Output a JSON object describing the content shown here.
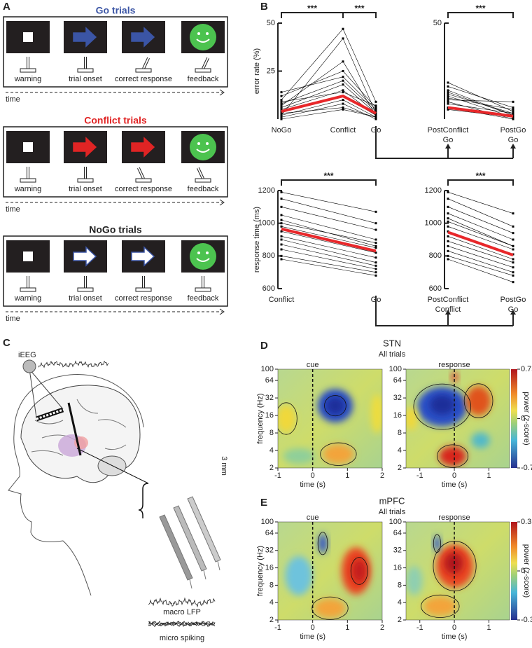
{
  "panel_labels": [
    "A",
    "B",
    "C",
    "D",
    "E"
  ],
  "panel_a": {
    "trials": [
      {
        "title": "Go trials",
        "color": "#3b55a5"
      },
      {
        "title": "Conflict trials",
        "color": "#e02424"
      },
      {
        "title": "NoGo trials",
        "color": "#222222"
      }
    ],
    "steps": [
      "warning",
      "trial onset",
      "correct response",
      "feedback"
    ],
    "time_label": "time"
  },
  "chart_data": [
    {
      "type": "line",
      "y_label": "error rate (%)",
      "categories": [
        "NoGo",
        "Conflict",
        "Go"
      ],
      "values": [
        4,
        12,
        3
      ],
      "color": "#e8272a",
      "subject_values": [
        [
          2,
          10,
          1
        ],
        [
          5,
          15,
          2
        ],
        [
          8,
          20,
          4
        ],
        [
          3,
          6,
          1
        ],
        [
          12,
          25,
          6
        ],
        [
          1,
          8,
          0
        ],
        [
          6,
          18,
          3
        ],
        [
          10,
          47,
          9
        ],
        [
          4,
          12,
          2
        ],
        [
          14,
          22,
          5
        ],
        [
          2,
          42,
          3
        ],
        [
          7,
          30,
          2
        ],
        [
          0,
          5,
          1
        ],
        [
          9,
          14,
          7
        ]
      ],
      "subject_color": "#000000",
      "ylim": [
        0,
        50
      ],
      "yticks": [
        25,
        50
      ],
      "annotations": [
        "***",
        "***"
      ]
    },
    {
      "type": "line",
      "categories": [
        "PostConflict\nGo",
        "PostGo\nGo"
      ],
      "values": [
        6,
        1.5
      ],
      "color": "#e8272a",
      "subject_values": [
        [
          19,
          4
        ],
        [
          15,
          2
        ],
        [
          12,
          1
        ],
        [
          10,
          9
        ],
        [
          8,
          3
        ],
        [
          17,
          6
        ],
        [
          6,
          0
        ],
        [
          14,
          2
        ],
        [
          11,
          5
        ],
        [
          5,
          1
        ],
        [
          9,
          0
        ],
        [
          13,
          3
        ]
      ],
      "subject_color": "#000000",
      "ylim": [
        0,
        50
      ],
      "yticks": [
        50
      ],
      "annotations": [
        "***"
      ]
    },
    {
      "type": "line",
      "y_label": "response time (ms)",
      "categories": [
        "Conflict",
        "Go"
      ],
      "values": [
        965,
        830
      ],
      "color": "#e8272a",
      "subject_values": [
        [
          1190,
          1070
        ],
        [
          1150,
          1000
        ],
        [
          1100,
          960
        ],
        [
          1050,
          900
        ],
        [
          1000,
          880
        ],
        [
          980,
          850
        ],
        [
          950,
          820
        ],
        [
          920,
          790
        ],
        [
          900,
          760
        ],
        [
          870,
          740
        ],
        [
          840,
          720
        ],
        [
          800,
          700
        ],
        [
          780,
          680
        ],
        [
          1020,
          860
        ]
      ],
      "subject_color": "#000000",
      "ylim": [
        600,
        1200
      ],
      "yticks": [
        600,
        800,
        1000,
        1200
      ],
      "annotations": [
        "***"
      ]
    },
    {
      "type": "line",
      "categories": [
        "PostConflict\nConflict",
        "PostGo\nGo"
      ],
      "values": [
        945,
        805
      ],
      "color": "#e8272a",
      "subject_values": [
        [
          1190,
          1060
        ],
        [
          1150,
          980
        ],
        [
          1100,
          940
        ],
        [
          1060,
          900
        ],
        [
          1010,
          860
        ],
        [
          980,
          840
        ],
        [
          950,
          810
        ],
        [
          920,
          780
        ],
        [
          890,
          760
        ],
        [
          860,
          730
        ],
        [
          830,
          700
        ],
        [
          800,
          680
        ],
        [
          780,
          640
        ],
        [
          1030,
          860
        ]
      ],
      "subject_color": "#000000",
      "ylim": [
        600,
        1200
      ],
      "yticks": [
        600,
        800,
        1000,
        1200
      ],
      "annotations": [
        "***"
      ]
    }
  ],
  "panel_c": {
    "ieeg": "iEEG",
    "scale": "3 mm",
    "lfp": "macro LFP",
    "spiking": "micro spiking"
  },
  "panel_d": {
    "title": "STN",
    "subtitle": "All trials",
    "y_label": "frequency (Hz)",
    "x_label": "time (s)",
    "yticks": [
      100,
      64,
      32,
      16,
      8,
      4,
      2
    ],
    "left": {
      "event": "cue",
      "xlim": [
        -1,
        2
      ],
      "xticks": [
        -1,
        0,
        1,
        2
      ]
    },
    "right": {
      "event": "response",
      "xlim": [
        -1.4,
        1.6
      ],
      "xticks": [
        -1,
        0,
        1
      ]
    },
    "colorbar": {
      "label": "power (z-score)",
      "ticks": [
        0.75,
        0,
        -0.75
      ]
    }
  },
  "panel_e": {
    "title": "mPFC",
    "subtitle": "All trials",
    "y_label": "frequency (Hz)",
    "x_label": "time (s)",
    "yticks": [
      100,
      64,
      32,
      16,
      8,
      4,
      2
    ],
    "left": {
      "event": "cue",
      "xlim": [
        -1,
        2
      ],
      "xticks": [
        -1,
        0,
        1,
        2
      ]
    },
    "right": {
      "event": "response",
      "xlim": [
        -1.4,
        1.6
      ],
      "xticks": [
        -1,
        0,
        1
      ]
    },
    "colorbar": {
      "label": "power (z-score)",
      "ticks": [
        0.35,
        0,
        -0.35
      ]
    }
  }
}
